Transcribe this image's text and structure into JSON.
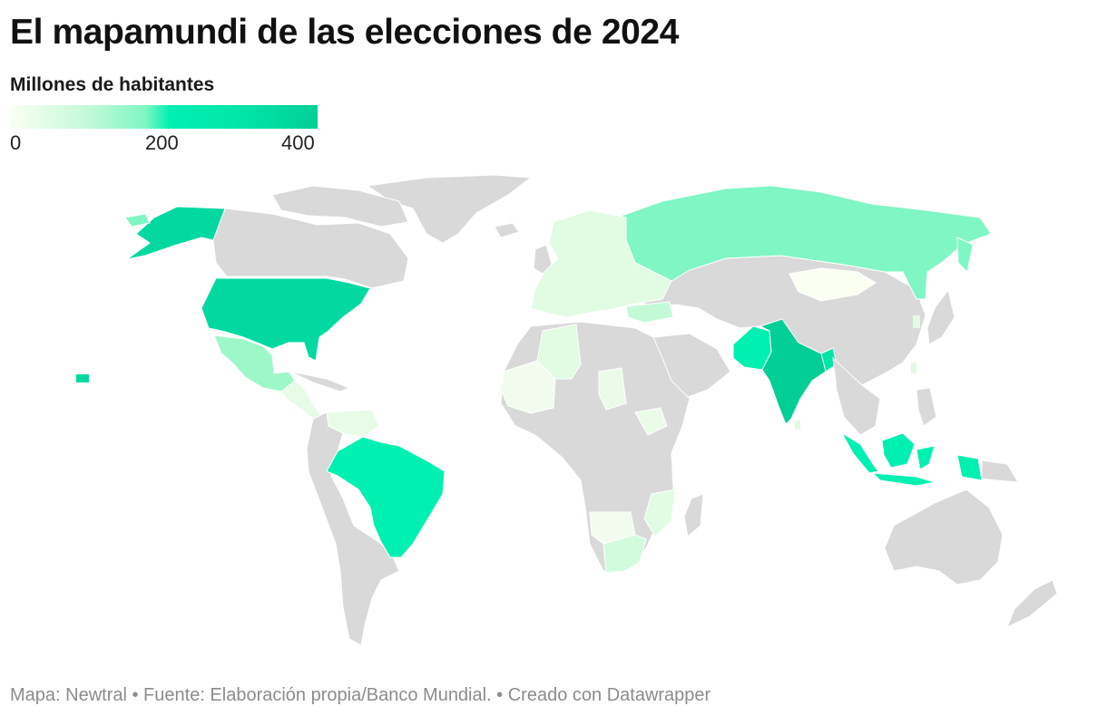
{
  "title": "El mapamundi de las elecciones de 2024",
  "legend": {
    "title": "Millones de habitantes",
    "ticks": [
      "0",
      "200",
      "400"
    ],
    "range": [
      0,
      400
    ],
    "colors": [
      "#fafff2",
      "#c4f9d8",
      "#7ff6c3",
      "#00f0b2",
      "#01e5a8",
      "#01cf96"
    ],
    "no_data_color": "#d9d9d9"
  },
  "footer": "Mapa: Newtral • Fuente: Elaboración propia/Banco Mundial. • Creado con Datawrapper",
  "highlighted_regions": [
    {
      "name": "United States",
      "value": 335
    },
    {
      "name": "India",
      "value": 1428
    },
    {
      "name": "Indonesia",
      "value": 277
    },
    {
      "name": "Brazil",
      "value": 216
    },
    {
      "name": "Pakistan",
      "value": 240
    },
    {
      "name": "Russia",
      "value": 144
    },
    {
      "name": "Mexico",
      "value": 128
    },
    {
      "name": "Bangladesh",
      "value": 172
    },
    {
      "name": "South Africa",
      "value": 60
    },
    {
      "name": "Mongolia",
      "value": 3
    }
  ]
}
